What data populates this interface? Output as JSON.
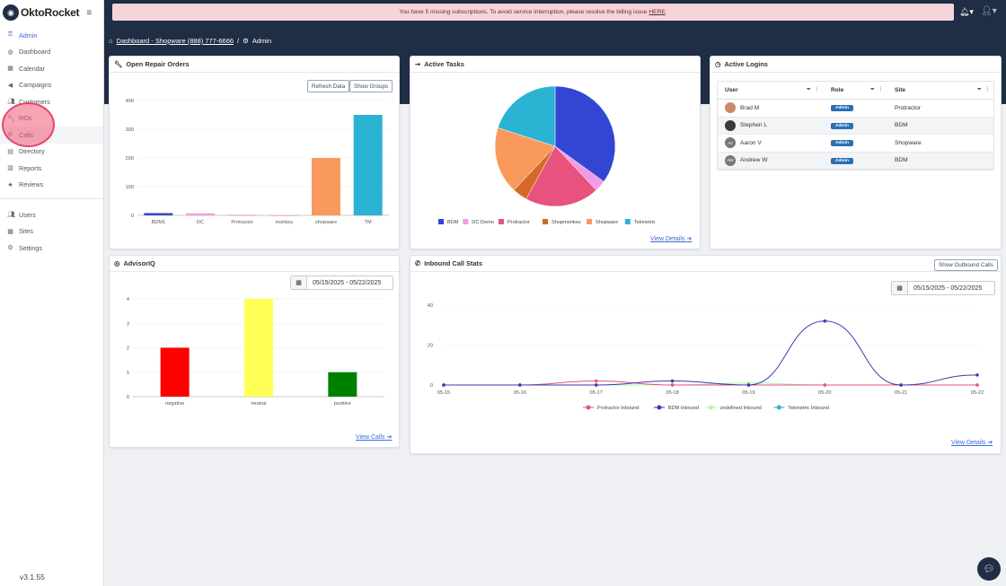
{
  "sidebar": {
    "logo": "OktoRocket",
    "items": [
      {
        "label": "Admin",
        "icon": "key-icon",
        "active": true
      },
      {
        "label": "Dashboard",
        "icon": "palette-icon"
      },
      {
        "label": "Calendar",
        "icon": "calendar-icon"
      },
      {
        "label": "Campaigns",
        "icon": "bullhorn-icon"
      },
      {
        "label": "Customers",
        "icon": "users-icon"
      },
      {
        "label": "ROs",
        "icon": "wrench-icon"
      },
      {
        "label": "Calls",
        "icon": "phone-icon"
      },
      {
        "label": "Directory",
        "icon": "book-icon"
      },
      {
        "label": "Reports",
        "icon": "bar-chart-icon"
      },
      {
        "label": "Reviews",
        "icon": "star-icon"
      }
    ],
    "items2": [
      {
        "label": "Users",
        "icon": "users-icon"
      },
      {
        "label": "Sites",
        "icon": "building-icon"
      },
      {
        "label": "Settings",
        "icon": "gear-icon"
      }
    ],
    "version": "v3.1.55"
  },
  "alert": {
    "text": "You have 5 missing subscriptions. To avoid service interruption, please resolve the billing issue",
    "link": "HERE",
    "end": "."
  },
  "breadcrumb": {
    "dashboard": "Dashboard - Shopware (888) 777-6666",
    "sep": "/",
    "current": "Admin"
  },
  "repair": {
    "title": "Open Repair Orders",
    "refresh": "Refresh Data",
    "groups": "Show Groups"
  },
  "tasks": {
    "title": "Active Tasks",
    "details": "View Details"
  },
  "logins": {
    "title": "Active Logins",
    "headers": {
      "user": "User",
      "role": "Role",
      "site": "Site"
    },
    "rows": [
      {
        "user": "Brad M",
        "initials": "",
        "role": "Admin",
        "site": "Protractor"
      },
      {
        "user": "Stephen L",
        "initials": "",
        "role": "Admin",
        "site": "BDM"
      },
      {
        "user": "Aaron V",
        "initials": "AV",
        "role": "Admin",
        "site": "Shopware"
      },
      {
        "user": "Andrew W",
        "initials": "AW",
        "role": "Admin",
        "site": "BDM"
      }
    ]
  },
  "advisor": {
    "title": "AdvisorIQ",
    "date": "05/15/2025 - 05/22/2025",
    "link": "View Calls"
  },
  "inbound": {
    "title": "Inbound Call Stats",
    "button": "Show Outbound Calls",
    "date": "05/15/2025 - 05/22/2025",
    "details": "View Details"
  },
  "chart_data": [
    {
      "type": "bar",
      "title": "Open Repair Orders",
      "categories": [
        "BDM1",
        "DC",
        "Protractor",
        "monkey",
        "shopware",
        "TM"
      ],
      "values": [
        8,
        7,
        1,
        0,
        200,
        350
      ],
      "colors": [
        "#3a4ac8",
        "#f19be5",
        "#e0527e",
        "#d0692c",
        "#f99a5c",
        "#2bb3d3"
      ],
      "ylim": [
        0,
        400
      ],
      "yticks": [
        0,
        100,
        200,
        300,
        400
      ]
    },
    {
      "type": "pie",
      "title": "Active Tasks",
      "labels": [
        "BDM",
        "DC Demo",
        "Protractor",
        "Shopmonkey",
        "Shopware",
        "Tekmetric"
      ],
      "values": [
        35,
        3,
        20,
        4,
        18,
        20
      ],
      "colors": [
        "#3246d3",
        "#f19be5",
        "#e8527f",
        "#d5692a",
        "#f99a5c",
        "#2bb3d3"
      ],
      "legend": "bottom"
    },
    {
      "type": "bar",
      "title": "AdvisorIQ",
      "categories": [
        "negative",
        "neutral",
        "positive"
      ],
      "values": [
        2,
        4,
        1
      ],
      "colors": [
        "#ff0000",
        "#ffff55",
        "#008000"
      ],
      "ylim": [
        0,
        4
      ],
      "yticks": [
        0,
        1,
        2,
        3,
        4
      ]
    },
    {
      "type": "line",
      "title": "Inbound Call Stats",
      "x": [
        "05-15",
        "05-16",
        "05-17",
        "05-18",
        "05-19",
        "05-20",
        "05-21",
        "05-22"
      ],
      "ylim": [
        0,
        40
      ],
      "yticks": [
        0,
        20,
        40
      ],
      "series": [
        {
          "name": "Protractor Inbound",
          "color": "#e8527f",
          "values": [
            0,
            0,
            2,
            0,
            0,
            0,
            0,
            0
          ]
        },
        {
          "name": "BDM Inbound",
          "color": "#3a3ab0",
          "values": [
            0,
            0,
            0,
            2,
            0,
            32,
            0,
            5
          ]
        },
        {
          "name": "undefined Inbound",
          "color": "#b6f0a8",
          "values": [
            0,
            0,
            0,
            0,
            1,
            0,
            0,
            0
          ]
        },
        {
          "name": "Tekmetric Inbound",
          "color": "#2bb3c3",
          "values": [
            0,
            0,
            0,
            0,
            0,
            0,
            0,
            0
          ]
        }
      ],
      "legend": "bottom"
    }
  ]
}
